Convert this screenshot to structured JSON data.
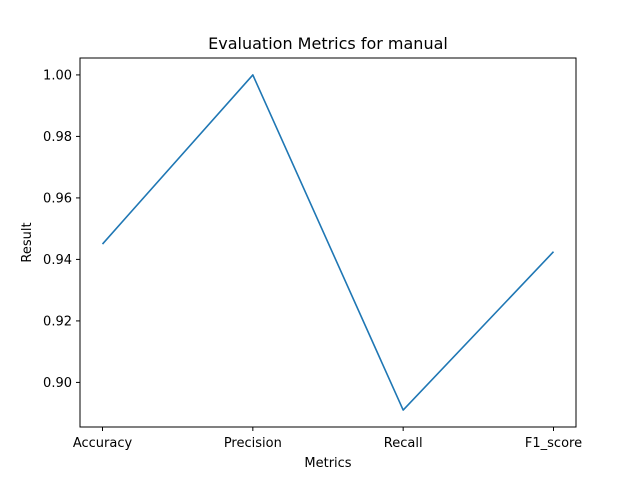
{
  "chart_data": {
    "type": "line",
    "title": "Evaluation Metrics for manual",
    "xlabel": "Metrics",
    "ylabel": "Result",
    "categories": [
      "Accuracy",
      "Precision",
      "Recall",
      "F1_score"
    ],
    "series": [
      {
        "values": [
          0.945,
          1.0,
          0.891,
          0.9425
        ]
      }
    ],
    "ylim": [
      0.8855,
      1.0055
    ],
    "yticks": [
      "0.90",
      "0.92",
      "0.94",
      "0.96",
      "0.98",
      "1.00"
    ],
    "line_color": "#1f77b4",
    "grid": false,
    "legend": "none"
  }
}
